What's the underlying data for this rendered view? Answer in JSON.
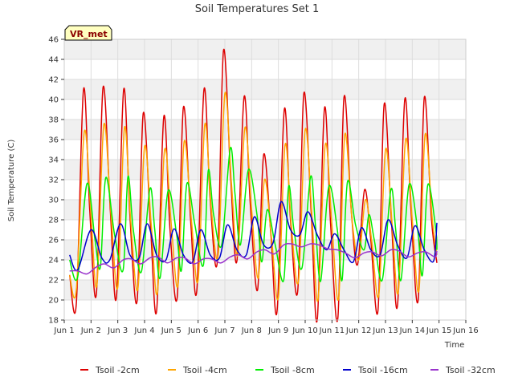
{
  "chart_data": {
    "type": "line",
    "title": "Soil Temperatures Set 1",
    "xlabel": "Time",
    "ylabel": "Soil Temperature (C)",
    "badge": "VR_met",
    "xlim": [
      1,
      16
    ],
    "ylim": [
      18,
      46
    ],
    "x_ticks": [
      {
        "value": 1,
        "label": "Jun 1"
      },
      {
        "value": 2,
        "label": "Jun 2"
      },
      {
        "value": 3,
        "label": "Jun 3"
      },
      {
        "value": 4,
        "label": "Jun 4"
      },
      {
        "value": 5,
        "label": "Jun 5"
      },
      {
        "value": 6,
        "label": "Jun 6"
      },
      {
        "value": 7,
        "label": "Jun 7"
      },
      {
        "value": 8,
        "label": "Jun 8"
      },
      {
        "value": 9,
        "label": "Jun 9"
      },
      {
        "value": 10,
        "label": "Jun 10"
      },
      {
        "value": 11,
        "label": "Jun 11"
      },
      {
        "value": 12,
        "label": "Jun 12"
      },
      {
        "value": 13,
        "label": "Jun 13"
      },
      {
        "value": 14,
        "label": "Jun 14"
      },
      {
        "value": 15,
        "label": "Jun 15"
      },
      {
        "value": 16,
        "label": "Jun 16"
      }
    ],
    "y_ticks": [
      18,
      20,
      22,
      24,
      26,
      28,
      30,
      32,
      34,
      36,
      38,
      40,
      42,
      44,
      46
    ],
    "grid": true,
    "legend_position": "bottom",
    "series": [
      {
        "name": "Tsoil -2cm",
        "color": "#dd0000",
        "x": [
          1.2,
          1.45,
          1.72,
          1.95,
          2.2,
          2.45,
          2.72,
          2.95,
          3.22,
          3.45,
          3.72,
          3.95,
          4.22,
          4.45,
          4.72,
          4.95,
          5.22,
          5.45,
          5.72,
          5.95,
          6.22,
          6.45,
          6.72,
          6.95,
          7.22,
          7.45,
          7.72,
          7.95,
          8.22,
          8.45,
          8.72,
          8.95,
          9.22,
          9.45,
          9.72,
          9.95,
          10.22,
          10.45,
          10.72,
          10.95,
          11.22,
          11.45,
          11.72,
          11.95,
          12.22,
          12.45,
          12.72,
          12.95,
          13.22,
          13.45,
          13.72,
          13.95,
          14.22,
          14.45,
          14.72,
          14.92
        ],
        "y": [
          22.5,
          19.6,
          41.0,
          29.0,
          20.6,
          41.2,
          29.0,
          20.3,
          41.0,
          28.5,
          19.9,
          38.6,
          27.5,
          18.9,
          38.3,
          27.0,
          20.3,
          39.2,
          28.0,
          20.9,
          41.0,
          30.0,
          23.9,
          44.9,
          32.0,
          23.9,
          40.3,
          29.5,
          21.0,
          34.5,
          26.5,
          18.9,
          39.0,
          28.0,
          20.9,
          40.6,
          29.0,
          18.0,
          39.1,
          27.5,
          18.2,
          40.2,
          29.0,
          23.5,
          31.0,
          26.0,
          19.0,
          39.5,
          28.0,
          19.5,
          40.0,
          29.0,
          20.0,
          40.2,
          28.0,
          23.7
        ]
      },
      {
        "name": "Tsoil -4cm",
        "color": "#ffa500",
        "x": [
          1.2,
          1.45,
          1.75,
          2.0,
          2.22,
          2.48,
          2.75,
          3.0,
          3.25,
          3.48,
          3.75,
          4.0,
          4.25,
          4.48,
          4.75,
          5.0,
          5.25,
          5.48,
          5.75,
          6.0,
          6.25,
          6.48,
          6.75,
          7.0,
          7.25,
          7.48,
          7.75,
          8.0,
          8.25,
          8.48,
          8.75,
          9.0,
          9.25,
          9.48,
          9.75,
          10.0,
          10.25,
          10.48,
          10.75,
          11.0,
          11.25,
          11.48,
          11.75,
          12.0,
          12.25,
          12.48,
          12.75,
          13.0,
          13.25,
          13.48,
          13.75,
          14.0,
          14.25,
          14.48,
          14.75,
          14.92
        ],
        "y": [
          22.5,
          21.0,
          36.8,
          28.5,
          21.5,
          37.5,
          28.5,
          21.3,
          37.2,
          28.0,
          21.1,
          35.3,
          27.5,
          20.7,
          35.0,
          27.5,
          21.5,
          35.8,
          28.0,
          22.0,
          37.5,
          29.5,
          24.5,
          40.6,
          31.5,
          24.5,
          37.2,
          29.0,
          22.2,
          32.0,
          26.0,
          20.3,
          35.5,
          27.5,
          21.9,
          37.0,
          28.5,
          20.0,
          35.5,
          27.5,
          20.2,
          36.5,
          28.0,
          24.0,
          30.0,
          26.0,
          20.5,
          35.0,
          27.5,
          20.8,
          36.0,
          28.0,
          21.0,
          36.5,
          28.0,
          24.5
        ]
      },
      {
        "name": "Tsoil -8cm",
        "color": "#00ee00",
        "x": [
          1.2,
          1.5,
          1.85,
          2.15,
          2.35,
          2.55,
          2.88,
          3.2,
          3.38,
          3.58,
          3.88,
          4.2,
          4.38,
          4.58,
          4.88,
          5.2,
          5.38,
          5.58,
          5.88,
          6.2,
          6.38,
          6.58,
          6.88,
          7.2,
          7.38,
          7.58,
          7.88,
          8.2,
          8.38,
          8.58,
          8.88,
          9.2,
          9.38,
          9.58,
          9.88,
          10.2,
          10.38,
          10.58,
          10.88,
          11.2,
          11.38,
          11.58,
          11.88,
          12.2,
          12.38,
          12.58,
          12.88,
          13.2,
          13.38,
          13.58,
          13.88,
          14.2,
          14.38,
          14.58,
          14.88,
          14.92
        ],
        "y": [
          24.0,
          22.3,
          31.6,
          26.0,
          23.3,
          32.2,
          26.5,
          23.0,
          32.3,
          27.0,
          22.8,
          31.1,
          27.0,
          22.2,
          30.9,
          26.5,
          23.0,
          31.6,
          27.5,
          23.5,
          32.9,
          28.5,
          25.5,
          35.1,
          30.5,
          25.5,
          33.0,
          28.5,
          23.8,
          29.0,
          25.5,
          22.0,
          31.3,
          27.0,
          23.2,
          32.3,
          27.5,
          21.9,
          31.3,
          27.0,
          22.0,
          31.8,
          27.5,
          25.0,
          28.5,
          26.0,
          22.0,
          31.0,
          27.0,
          22.0,
          31.5,
          27.0,
          22.5,
          31.5,
          27.0,
          25.0
        ]
      },
      {
        "name": "Tsoil -16cm",
        "color": "#0000cc",
        "x": [
          1.2,
          1.5,
          2.0,
          2.4,
          2.7,
          3.1,
          3.45,
          3.8,
          4.1,
          4.45,
          4.8,
          5.1,
          5.45,
          5.8,
          6.1,
          6.45,
          6.8,
          7.1,
          7.45,
          7.8,
          8.1,
          8.45,
          8.8,
          9.1,
          9.45,
          9.8,
          10.1,
          10.45,
          10.8,
          11.1,
          11.45,
          11.8,
          12.1,
          12.45,
          12.8,
          13.1,
          13.45,
          13.8,
          14.1,
          14.45,
          14.8,
          14.92
        ],
        "y": [
          24.5,
          23.0,
          27.0,
          24.2,
          24.0,
          27.6,
          24.5,
          24.2,
          27.6,
          24.5,
          24.0,
          27.1,
          24.5,
          23.8,
          27.0,
          24.5,
          24.2,
          27.5,
          25.0,
          24.5,
          28.3,
          25.5,
          25.7,
          29.8,
          27.0,
          26.5,
          28.8,
          26.5,
          25.0,
          26.6,
          25.0,
          23.8,
          27.2,
          25.0,
          24.5,
          28.0,
          25.5,
          24.2,
          27.4,
          25.0,
          23.9,
          27.7
        ]
      },
      {
        "name": "Tsoil -32cm",
        "color": "#9933cc",
        "x": [
          1.2,
          1.5,
          1.85,
          2.2,
          2.5,
          2.85,
          3.2,
          3.5,
          3.85,
          4.2,
          4.5,
          4.85,
          5.2,
          5.5,
          5.85,
          6.2,
          6.5,
          6.85,
          7.2,
          7.5,
          7.85,
          8.2,
          8.5,
          8.85,
          9.2,
          9.5,
          9.85,
          10.2,
          10.5,
          10.85,
          11.2,
          11.5,
          11.85,
          12.2,
          12.5,
          12.85,
          13.2,
          13.5,
          13.85,
          14.2,
          14.5,
          14.85,
          14.92
        ],
        "y": [
          22.9,
          22.9,
          22.6,
          23.3,
          23.6,
          23.2,
          24.0,
          24.1,
          23.6,
          24.2,
          24.3,
          23.7,
          24.2,
          24.2,
          23.6,
          24.1,
          24.1,
          23.7,
          24.3,
          24.5,
          24.1,
          24.8,
          25.0,
          24.6,
          25.5,
          25.6,
          25.3,
          25.6,
          25.5,
          25.1,
          25.0,
          24.7,
          24.2,
          24.7,
          24.8,
          24.4,
          25.0,
          24.9,
          24.3,
          24.7,
          24.8,
          24.3,
          24.9
        ]
      }
    ]
  }
}
